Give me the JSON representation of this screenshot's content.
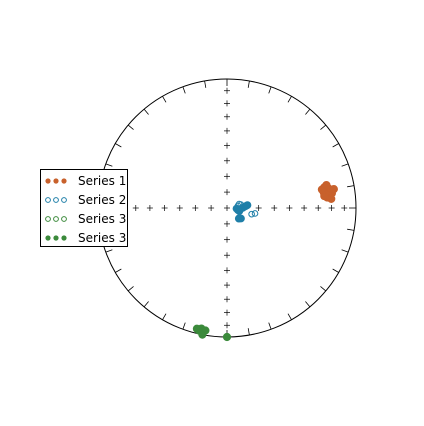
{
  "chart_data": {
    "type": "scatter",
    "projection": "equal-area stereonet (lower hemisphere)",
    "axis_units": "declination (deg, clockwise from north), inclination (deg)",
    "grid": "cross of + ticks along N-S and E-W diameters",
    "legend_placement": "left",
    "series": [
      {
        "name": "Series 1",
        "color": "#c8612c",
        "marker": "filled",
        "points": [
          {
            "dec": 78,
            "inc": 24
          },
          {
            "dec": 79,
            "inc": 21
          },
          {
            "dec": 80,
            "inc": 20
          },
          {
            "dec": 81,
            "inc": 22
          },
          {
            "dec": 82,
            "inc": 19
          },
          {
            "dec": 83,
            "inc": 21
          },
          {
            "dec": 84,
            "inc": 23
          },
          {
            "dec": 79,
            "inc": 26
          },
          {
            "dec": 77,
            "inc": 22
          },
          {
            "dec": 81,
            "inc": 25
          },
          {
            "dec": 80,
            "inc": 17
          },
          {
            "dec": 82,
            "inc": 24
          },
          {
            "dec": 85,
            "inc": 20
          },
          {
            "dec": 83,
            "inc": 25
          }
        ]
      },
      {
        "name": "Series 2",
        "color": "#1f7fa8",
        "marker": "open",
        "points": [
          {
            "dec": 76,
            "inc": 81
          },
          {
            "dec": 79,
            "inc": 83
          },
          {
            "dec": 72,
            "inc": 82
          },
          {
            "dec": 104,
            "inc": 74
          },
          {
            "dec": 101,
            "inc": 72
          }
        ]
      },
      {
        "name": "Series 3",
        "color": "#3b8a3b",
        "marker": "open",
        "points": []
      },
      {
        "name": "Series 3",
        "color": "#3b8a3b",
        "marker": "filled",
        "points": [
          {
            "dec": 192,
            "inc": 5
          },
          {
            "dec": 193,
            "inc": 3
          },
          {
            "dec": 194,
            "inc": 4
          },
          {
            "dec": 191,
            "inc": 3
          },
          {
            "dec": 190,
            "inc": 4
          },
          {
            "dec": 191,
            "inc": 0
          },
          {
            "dec": 180,
            "inc": 0
          }
        ]
      }
    ],
    "extra_filled_blue_points": [
      {
        "dec": 101,
        "inc": 83
      },
      {
        "dec": 97,
        "inc": 82
      },
      {
        "dec": 92,
        "inc": 81
      },
      {
        "dec": 89,
        "inc": 80
      },
      {
        "dec": 86,
        "inc": 79
      },
      {
        "dec": 84,
        "inc": 78
      },
      {
        "dec": 82,
        "inc": 77
      },
      {
        "dec": 94,
        "inc": 84
      },
      {
        "dec": 104,
        "inc": 82
      },
      {
        "dec": 130,
        "inc": 80
      },
      {
        "dec": 127,
        "inc": 79
      },
      {
        "dec": 132,
        "inc": 80
      }
    ]
  }
}
